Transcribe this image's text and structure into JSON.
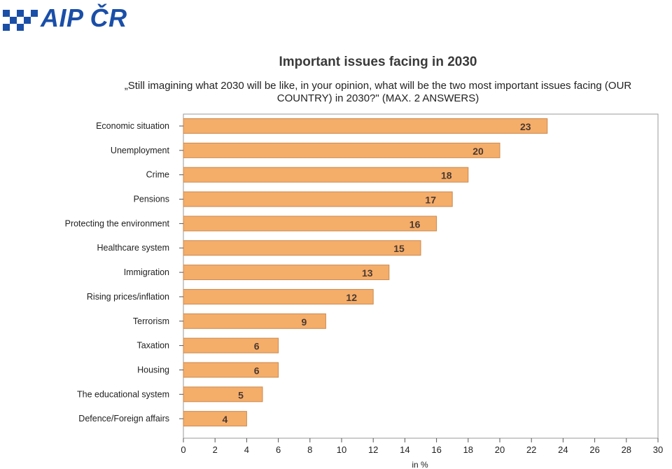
{
  "logo": {
    "text": "AIP ČR",
    "color": "#1a4fa8"
  },
  "chart_data": {
    "type": "bar",
    "orientation": "horizontal",
    "title": "Important issues facing in 2030",
    "subtitle": "„Still imagining what 2030 will be like, in your opinion, what will be the two most important issues facing (OUR COUNTRY) in 2030?\" (MAX. 2 ANSWERS)",
    "xlabel": "in %",
    "ylabel": "",
    "categories": [
      "Economic situation",
      "Unemployment",
      "Crime",
      "Pensions",
      "Protecting the environment",
      "Healthcare system",
      "Immigration",
      "Rising prices/inflation",
      "Terrorism",
      "Taxation",
      "Housing",
      "The educational system",
      "Defence/Foreign affairs"
    ],
    "values": [
      23,
      20,
      18,
      17,
      16,
      15,
      13,
      12,
      9,
      6,
      6,
      5,
      4
    ],
    "xlim": [
      0,
      30
    ],
    "xticks": [
      0,
      2,
      4,
      6,
      8,
      10,
      12,
      14,
      16,
      18,
      20,
      22,
      24,
      26,
      28,
      30
    ],
    "grid": false,
    "bar_color": "#f5ad6a",
    "bar_edge_color": "#c98a4f"
  }
}
